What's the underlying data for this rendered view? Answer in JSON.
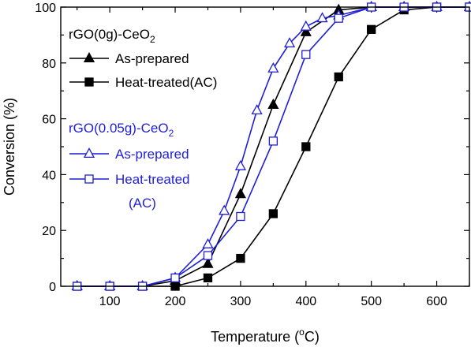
{
  "chart_data": {
    "type": "line",
    "xlabel": "Temperature (°C)",
    "xlabel_parts": {
      "before": "Temperature (",
      "sup": "o",
      "after": "C)"
    },
    "ylabel": "Conversion (%)",
    "xlim": [
      25,
      650
    ],
    "ylim": [
      0,
      100
    ],
    "xticks": [
      100,
      200,
      300,
      400,
      500,
      600
    ],
    "xminor": [
      50,
      150,
      250,
      350,
      450,
      550,
      650
    ],
    "yticks": [
      0,
      20,
      40,
      60,
      80,
      100
    ],
    "yminor": [
      10,
      30,
      50,
      70,
      90
    ],
    "grid": false,
    "legend_groups": [
      {
        "title": "rGO(0g)-CeO",
        "title_sub": "2",
        "color": "#000000"
      },
      {
        "title": "rGO(0.05g)-CeO",
        "title_sub": "2",
        "color": "#1f1fd6"
      }
    ],
    "series": [
      {
        "name": "As-prepared",
        "group": 0,
        "color": "#000000",
        "marker": "triangle",
        "filled": true,
        "x": [
          50,
          100,
          150,
          200,
          250,
          300,
          350,
          400,
          450,
          500,
          550,
          600,
          650
        ],
        "y": [
          0,
          0,
          0,
          2,
          8,
          33,
          65,
          91,
          99,
          100,
          100,
          100,
          100
        ]
      },
      {
        "name": "Heat-treated(AC)",
        "group": 0,
        "color": "#000000",
        "marker": "square",
        "filled": true,
        "x": [
          50,
          100,
          150,
          200,
          250,
          300,
          350,
          400,
          450,
          500,
          550,
          600,
          650
        ],
        "y": [
          0,
          0,
          0,
          0,
          3,
          10,
          26,
          50,
          75,
          92,
          99,
          100,
          100
        ]
      },
      {
        "name": "As-prepared",
        "group": 1,
        "color": "#1f1fd6",
        "marker": "triangle",
        "filled": false,
        "x": [
          50,
          100,
          150,
          200,
          250,
          275,
          300,
          325,
          350,
          375,
          400,
          425,
          450,
          500,
          550,
          600,
          650
        ],
        "y": [
          0,
          0,
          0,
          3,
          15,
          27,
          43,
          63,
          78,
          87,
          93,
          96,
          97,
          100,
          100,
          100,
          100
        ]
      },
      {
        "name": "Heat-treated",
        "name_line2": "(AC)",
        "group": 1,
        "color": "#1f1fd6",
        "marker": "square",
        "filled": false,
        "x": [
          50,
          100,
          150,
          200,
          250,
          300,
          350,
          400,
          450,
          500,
          550,
          600,
          650
        ],
        "y": [
          0,
          0,
          0,
          3,
          11,
          25,
          52,
          83,
          96,
          100,
          100,
          100,
          100
        ]
      }
    ]
  }
}
